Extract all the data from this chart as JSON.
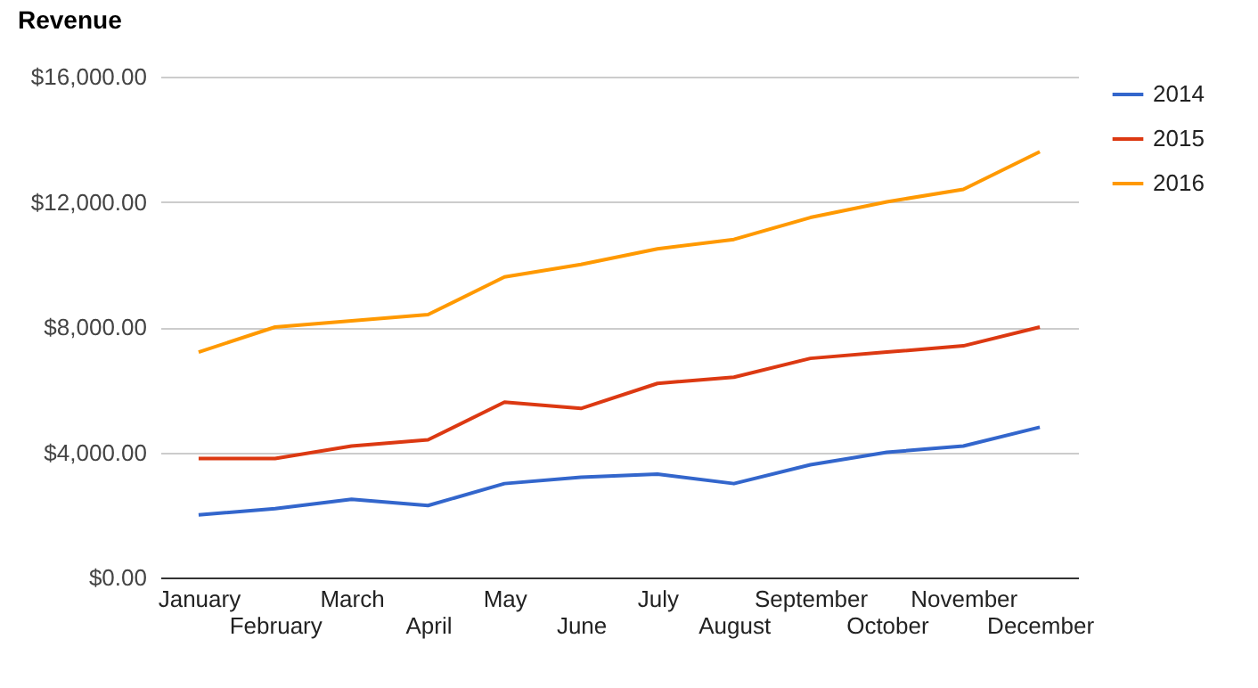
{
  "chart_data": {
    "type": "line",
    "title": "Revenue",
    "categories": [
      "January",
      "February",
      "March",
      "April",
      "May",
      "June",
      "July",
      "August",
      "September",
      "October",
      "November",
      "December"
    ],
    "series": [
      {
        "name": "2014",
        "color": "#3366cc",
        "values": [
          2000,
          2200,
          2500,
          2300,
          3000,
          3200,
          3300,
          3000,
          3600,
          4000,
          4200,
          4800
        ]
      },
      {
        "name": "2015",
        "color": "#dc3912",
        "values": [
          3800,
          3800,
          4200,
          4400,
          5600,
          5400,
          6200,
          6400,
          7000,
          7200,
          7400,
          8000
        ]
      },
      {
        "name": "2016",
        "color": "#ff9900",
        "values": [
          7200,
          8000,
          8200,
          8400,
          9600,
          10000,
          10500,
          10800,
          11500,
          12000,
          12400,
          13600
        ]
      }
    ],
    "ylim": [
      0,
      16000
    ],
    "yticks": [
      {
        "value": 0,
        "label": "$0.00"
      },
      {
        "value": 4000,
        "label": "$4,000.00"
      },
      {
        "value": 8000,
        "label": "$8,000.00"
      },
      {
        "value": 12000,
        "label": "$12,000.00"
      },
      {
        "value": 16000,
        "label": "$16,000.00"
      }
    ],
    "grid": "y",
    "legend": "right",
    "marker": "none",
    "line_style": "solid"
  }
}
